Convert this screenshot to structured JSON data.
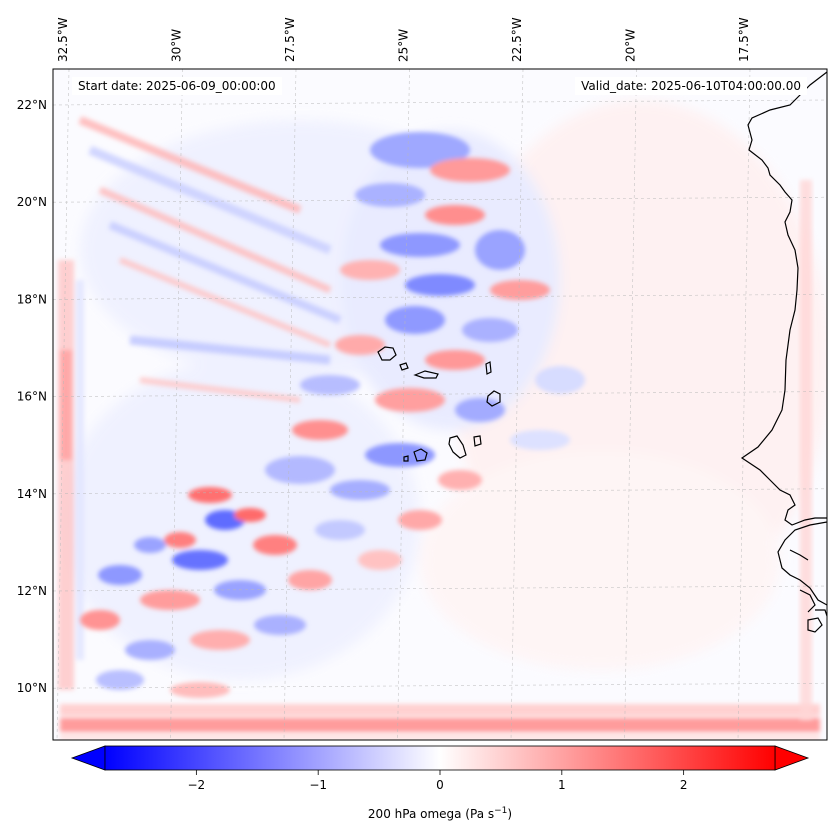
{
  "annotations": {
    "start_label": "Start date: 2025-06-09_00:00:00",
    "valid_label": "Valid_date: 2025-06-10T04:00:00.00"
  },
  "map": {
    "lon_ticks": [
      "32.5°W",
      "30°W",
      "27.5°W",
      "25°W",
      "22.5°W",
      "20°W",
      "17.5°W"
    ],
    "lat_ticks": [
      "22°N",
      "20°N",
      "18°N",
      "16°N",
      "14°N",
      "12°N",
      "10°N"
    ],
    "lat_values": [
      22,
      20,
      18,
      16,
      14,
      12,
      10
    ],
    "lon_values": [
      -32.5,
      -30,
      -27.5,
      -25,
      -22.5,
      -20,
      -17.5
    ],
    "gridlines": true,
    "coastline_color": "#000000"
  },
  "colorbar": {
    "label_prefix": "200 hPa omega (Pa s",
    "label_exp": "−1",
    "label_suffix": ")",
    "tick_values": [
      -2,
      -1,
      0,
      1,
      2
    ],
    "tick_labels": [
      "−2",
      "−1",
      "0",
      "1",
      "2"
    ],
    "range": [
      -2.75,
      2.75
    ],
    "extend": "both",
    "cmap": "bwr",
    "min_color": "#0000ff",
    "mid_color": "#ffffff",
    "max_color": "#ff0000"
  }
}
